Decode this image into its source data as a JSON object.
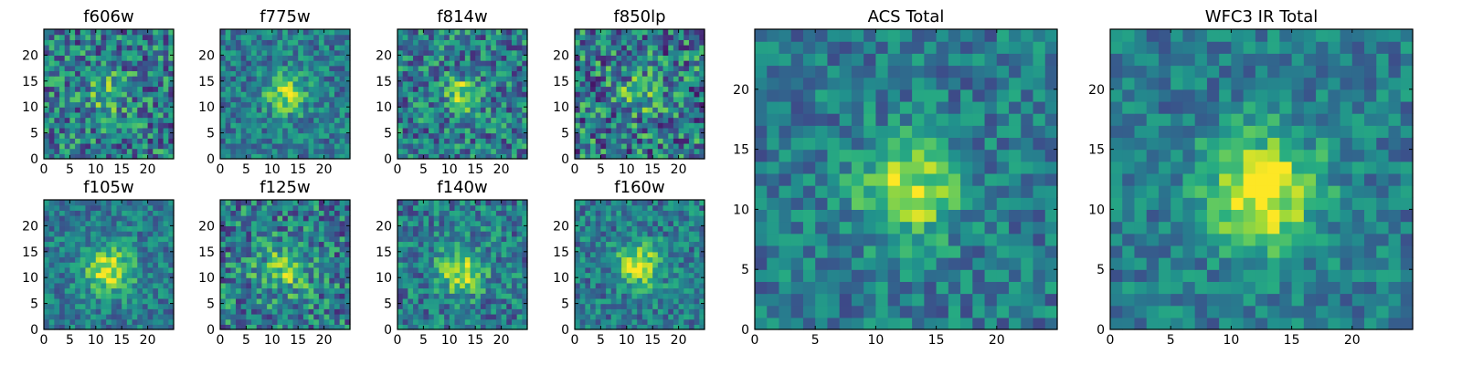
{
  "chart_data": {
    "type": "heatmap",
    "colormap": "viridis",
    "grid": false,
    "pixel_grid_size": 25,
    "panels": [
      {
        "title": "f606w",
        "xlim": [
          0,
          25
        ],
        "ylim": [
          0,
          25
        ],
        "xticks": [
          "0",
          "5",
          "10",
          "15",
          "20"
        ],
        "yticks": [
          "0",
          "5",
          "10",
          "15",
          "20"
        ],
        "center": [
          12,
          12
        ],
        "peak_amplitude": 0.35,
        "peak_sigma": 2.5,
        "noise_level": 0.32
      },
      {
        "title": "f775w",
        "xlim": [
          0,
          25
        ],
        "ylim": [
          0,
          25
        ],
        "xticks": [
          "0",
          "5",
          "10",
          "15",
          "20"
        ],
        "yticks": [
          "0",
          "5",
          "10",
          "15",
          "20"
        ],
        "center": [
          12,
          12
        ],
        "peak_amplitude": 0.45,
        "peak_sigma": 2.6,
        "noise_level": 0.22
      },
      {
        "title": "f814w",
        "xlim": [
          0,
          25
        ],
        "ylim": [
          0,
          25
        ],
        "xticks": [
          "0",
          "5",
          "10",
          "15",
          "20"
        ],
        "yticks": [
          "0",
          "5",
          "10",
          "15",
          "20"
        ],
        "center": [
          12,
          12
        ],
        "peak_amplitude": 0.4,
        "peak_sigma": 2.4,
        "noise_level": 0.3
      },
      {
        "title": "f850lp",
        "xlim": [
          0,
          25
        ],
        "ylim": [
          0,
          25
        ],
        "xticks": [
          "0",
          "5",
          "10",
          "15",
          "20"
        ],
        "yticks": [
          "0",
          "5",
          "10",
          "15",
          "20"
        ],
        "center": [
          12,
          12
        ],
        "peak_amplitude": 0.3,
        "peak_sigma": 2.6,
        "noise_level": 0.36
      },
      {
        "title": "f105w",
        "xlim": [
          0,
          25
        ],
        "ylim": [
          0,
          25
        ],
        "xticks": [
          "0",
          "5",
          "10",
          "15",
          "20"
        ],
        "yticks": [
          "0",
          "5",
          "10",
          "15",
          "20"
        ],
        "center": [
          12,
          11
        ],
        "peak_amplitude": 0.5,
        "peak_sigma": 3.2,
        "noise_level": 0.2
      },
      {
        "title": "f125w",
        "xlim": [
          0,
          25
        ],
        "ylim": [
          0,
          25
        ],
        "xticks": [
          "0",
          "5",
          "10",
          "15",
          "20"
        ],
        "yticks": [
          "0",
          "5",
          "10",
          "15",
          "20"
        ],
        "center": [
          12,
          11
        ],
        "peak_amplitude": 0.35,
        "peak_sigma": 3.5,
        "noise_level": 0.3
      },
      {
        "title": "f140w",
        "xlim": [
          0,
          25
        ],
        "ylim": [
          0,
          25
        ],
        "xticks": [
          "0",
          "5",
          "10",
          "15",
          "20"
        ],
        "yticks": [
          "0",
          "5",
          "10",
          "15",
          "20"
        ],
        "center": [
          12,
          11
        ],
        "peak_amplitude": 0.5,
        "peak_sigma": 3.0,
        "noise_level": 0.25
      },
      {
        "title": "f160w",
        "xlim": [
          0,
          25
        ],
        "ylim": [
          0,
          25
        ],
        "xticks": [
          "0",
          "5",
          "10",
          "15",
          "20"
        ],
        "yticks": [
          "0",
          "5",
          "10",
          "15",
          "20"
        ],
        "center": [
          12,
          12
        ],
        "peak_amplitude": 0.55,
        "peak_sigma": 2.8,
        "noise_level": 0.22
      },
      {
        "title": "ACS Total",
        "xlim": [
          0,
          25
        ],
        "ylim": [
          0,
          25
        ],
        "xticks": [
          "0",
          "5",
          "10",
          "15",
          "20"
        ],
        "yticks": [
          "0",
          "5",
          "10",
          "15",
          "20"
        ],
        "center": [
          12,
          11
        ],
        "peak_amplitude": 0.5,
        "peak_sigma": 2.8,
        "noise_level": 0.2
      },
      {
        "title": "WFC3 IR Total",
        "xlim": [
          0,
          25
        ],
        "ylim": [
          0,
          25
        ],
        "xticks": [
          "0",
          "5",
          "10",
          "15",
          "20"
        ],
        "yticks": [
          "0",
          "5",
          "10",
          "15",
          "20"
        ],
        "center": [
          12,
          11
        ],
        "peak_amplitude": 0.6,
        "peak_sigma": 3.3,
        "noise_level": 0.18
      }
    ]
  }
}
